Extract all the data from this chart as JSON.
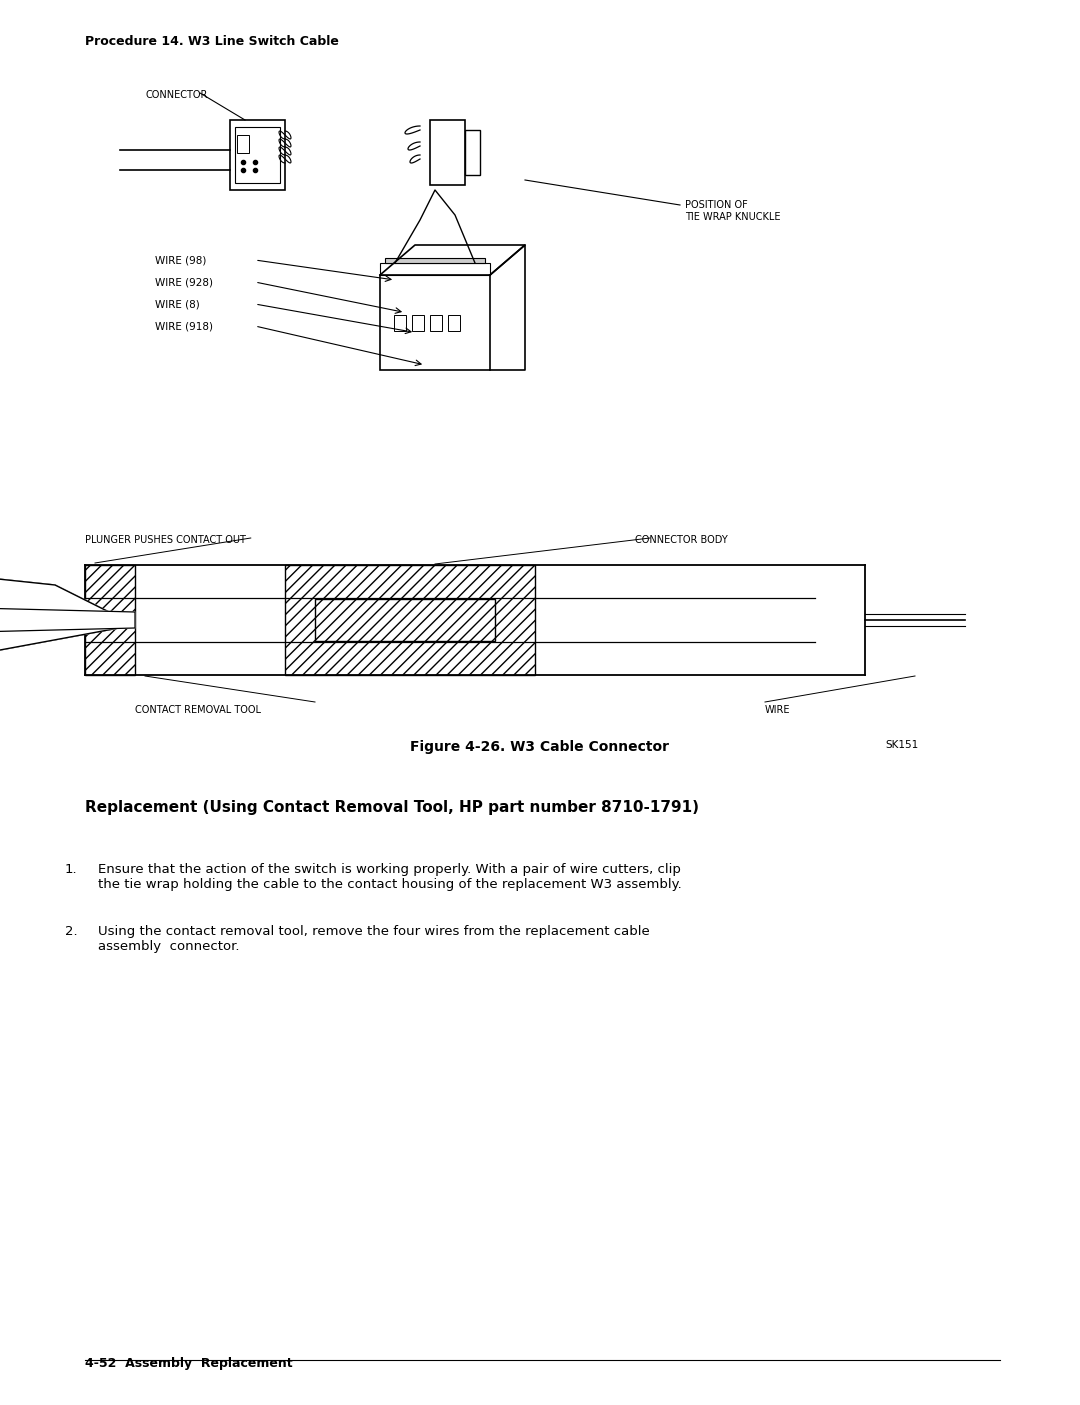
{
  "bg_color": "#ffffff",
  "page_width": 10.8,
  "page_height": 14.05,
  "procedure_title": "Procedure 14. W3 Line Switch Cable",
  "figure_caption": "Figure 4-26. W3 Cable Connector",
  "section_title": "Replacement (Using Contact Removal Tool, HP part number 8710-1791)",
  "step1": "Ensure that the action of the switch is working properly. With a pair of wire cutters, clip\nthe tie wrap holding the cable to the contact housing of the replacement W3 assembly.",
  "step2": "Using the contact removal tool, remove the four wires from the replacement cable\nassembly  connector.",
  "footer": "4-52  Assembly  Replacement",
  "sk_label": "SK151",
  "connector_label": "CONNECTOR",
  "position_label": "POSITION OF\nTIE WRAP KNUCKLE",
  "wire98": "WIRE (98)",
  "wire928": "WIRE (928)",
  "wire8": "WIRE (8)",
  "wire918": "WIRE (918)",
  "plunger_label": "PLUNGER PUSHES CONTACT OUT",
  "connector_body_label": "CONNECTOR BODY",
  "contact_removal_label": "CONTACT REMOVAL TOOL",
  "wire_label": "WIRE"
}
